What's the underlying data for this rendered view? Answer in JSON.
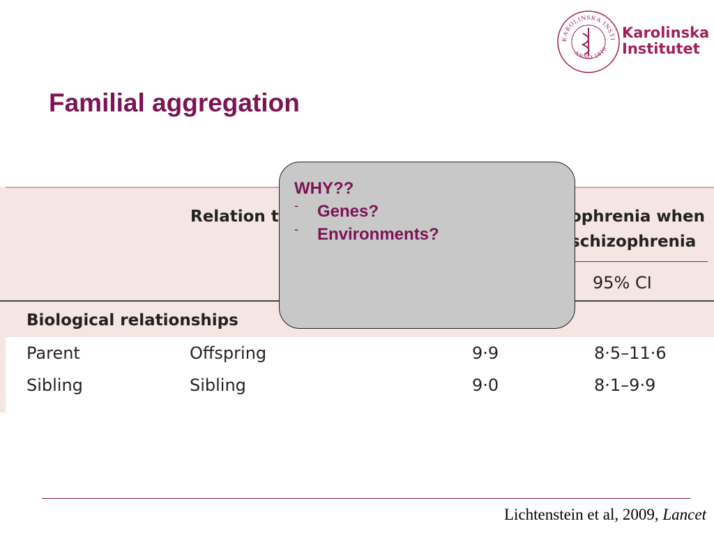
{
  "logo": {
    "seal_top": "KAROLINSKA INSTITUTET",
    "seal_bottom": "ANNO 1810",
    "name_line1": "Karolinska",
    "name_line2": "Institutet"
  },
  "title": "Familial aggregation",
  "table": {
    "header": {
      "relation": "Relation to",
      "outcome_line1": "ophrenia when",
      "outcome_line2": "schizophrenia",
      "ci": "95% CI"
    },
    "section": "Biological relationships",
    "rows": [
      [
        "Parent",
        "Offspring",
        "9·9",
        "8·5–11·6"
      ],
      [
        "Sibling",
        "Sibling",
        "9·0",
        "8·1–9·9"
      ]
    ]
  },
  "callout": {
    "heading": "WHY??",
    "bullets": [
      "Genes?",
      "Environments?"
    ]
  },
  "footer": {
    "citation": "Lichtenstein et al, 2009, ",
    "journal": "Lancet"
  }
}
